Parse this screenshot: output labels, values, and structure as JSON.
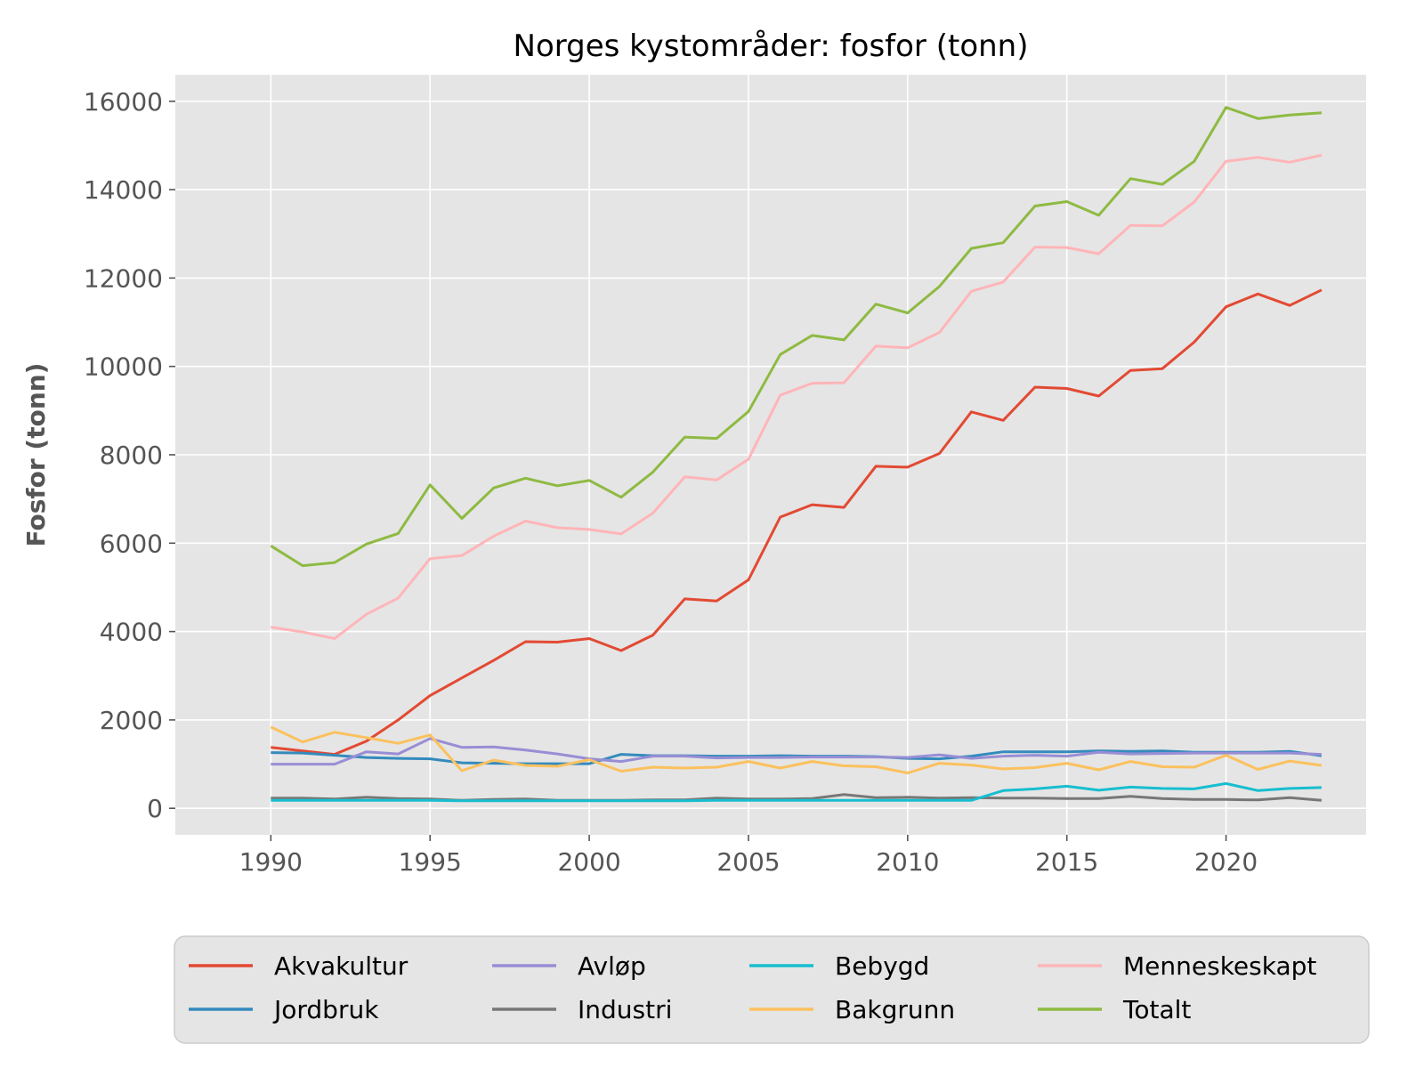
{
  "chart_data": {
    "type": "line",
    "title": "Norges kystområder: fosfor (tonn)",
    "xlabel": "",
    "ylabel": "Fosfor (tonn)",
    "xlim": [
      1987,
      2024.4
    ],
    "ylim": [
      -600,
      16600
    ],
    "x_ticks": [
      1990,
      1995,
      2000,
      2005,
      2010,
      2015,
      2020
    ],
    "y_ticks": [
      0,
      2000,
      4000,
      6000,
      8000,
      10000,
      12000,
      14000,
      16000
    ],
    "grid": true,
    "legend_position": "bottom",
    "x": [
      1990,
      1991,
      1992,
      1993,
      1994,
      1995,
      1996,
      1997,
      1998,
      1999,
      2000,
      2001,
      2002,
      2003,
      2004,
      2005,
      2006,
      2007,
      2008,
      2009,
      2010,
      2011,
      2012,
      2013,
      2014,
      2015,
      2016,
      2017,
      2018,
      2019,
      2020,
      2021,
      2022,
      2023
    ],
    "series": [
      {
        "name": "Akvakultur",
        "color": "#E24A33",
        "values": [
          1380,
          1300,
          1220,
          1520,
          2000,
          2550,
          2950,
          3350,
          3770,
          3760,
          3840,
          3570,
          3920,
          4740,
          4690,
          5170,
          6590,
          6870,
          6810,
          7740,
          7720,
          8030,
          8970,
          8780,
          9530,
          9500,
          9330,
          9910,
          9950,
          10550,
          11350,
          11640,
          11380,
          11730
        ]
      },
      {
        "name": "Jordbruk",
        "color": "#348ABD",
        "values": [
          1260,
          1250,
          1200,
          1150,
          1130,
          1120,
          1030,
          1020,
          1010,
          1010,
          1010,
          1220,
          1190,
          1190,
          1180,
          1180,
          1190,
          1180,
          1180,
          1170,
          1130,
          1120,
          1180,
          1280,
          1280,
          1280,
          1300,
          1290,
          1300,
          1270,
          1270,
          1270,
          1290,
          1190
        ]
      },
      {
        "name": "Avløp",
        "color": "#988ED5",
        "values": [
          1000,
          1000,
          1000,
          1280,
          1230,
          1580,
          1380,
          1390,
          1320,
          1230,
          1120,
          1060,
          1180,
          1180,
          1140,
          1150,
          1150,
          1160,
          1160,
          1160,
          1150,
          1210,
          1130,
          1180,
          1200,
          1180,
          1270,
          1230,
          1240,
          1250,
          1250,
          1250,
          1250,
          1220
        ]
      },
      {
        "name": "Industri",
        "color": "#777777",
        "values": [
          230,
          230,
          210,
          250,
          220,
          210,
          180,
          200,
          210,
          180,
          180,
          180,
          190,
          190,
          230,
          210,
          210,
          220,
          310,
          240,
          250,
          230,
          240,
          230,
          230,
          220,
          220,
          270,
          220,
          200,
          200,
          190,
          240,
          180
        ]
      },
      {
        "name": "Bebygd",
        "color": "#17BECF",
        "values": [
          180,
          180,
          180,
          180,
          180,
          180,
          170,
          170,
          170,
          170,
          170,
          170,
          170,
          170,
          180,
          180,
          180,
          180,
          180,
          180,
          180,
          180,
          180,
          400,
          440,
          500,
          410,
          480,
          450,
          440,
          560,
          400,
          450,
          470
        ]
      },
      {
        "name": "Bakgrunn",
        "color": "#FBC15E",
        "values": [
          1840,
          1500,
          1720,
          1600,
          1470,
          1660,
          850,
          1090,
          970,
          950,
          1100,
          840,
          930,
          910,
          930,
          1060,
          910,
          1060,
          960,
          940,
          800,
          1020,
          980,
          890,
          920,
          1020,
          870,
          1060,
          940,
          930,
          1200,
          880,
          1070,
          970
        ]
      },
      {
        "name": "Menneskeskapt",
        "color": "#FFB5B8",
        "values": [
          4100,
          3990,
          3840,
          4390,
          4760,
          5650,
          5720,
          6160,
          6500,
          6350,
          6310,
          6210,
          6680,
          7500,
          7430,
          7900,
          9350,
          9620,
          9630,
          10460,
          10420,
          10770,
          11700,
          11910,
          12700,
          12690,
          12550,
          13190,
          13180,
          13720,
          14640,
          14730,
          14620,
          14780
        ]
      },
      {
        "name": "Totalt",
        "color": "#8EBA42",
        "values": [
          5940,
          5490,
          5560,
          5980,
          6220,
          7320,
          6560,
          7250,
          7470,
          7300,
          7420,
          7040,
          7610,
          8400,
          8370,
          8980,
          10270,
          10700,
          10600,
          11410,
          11210,
          11810,
          12670,
          12800,
          13630,
          13730,
          13420,
          14250,
          14120,
          14640,
          15860,
          15610,
          15690,
          15740
        ]
      }
    ],
    "legend_order": [
      "Akvakultur",
      "Avløp",
      "Bebygd",
      "Menneskeskapt",
      "Jordbruk",
      "Industri",
      "Bakgrunn",
      "Totalt"
    ]
  }
}
